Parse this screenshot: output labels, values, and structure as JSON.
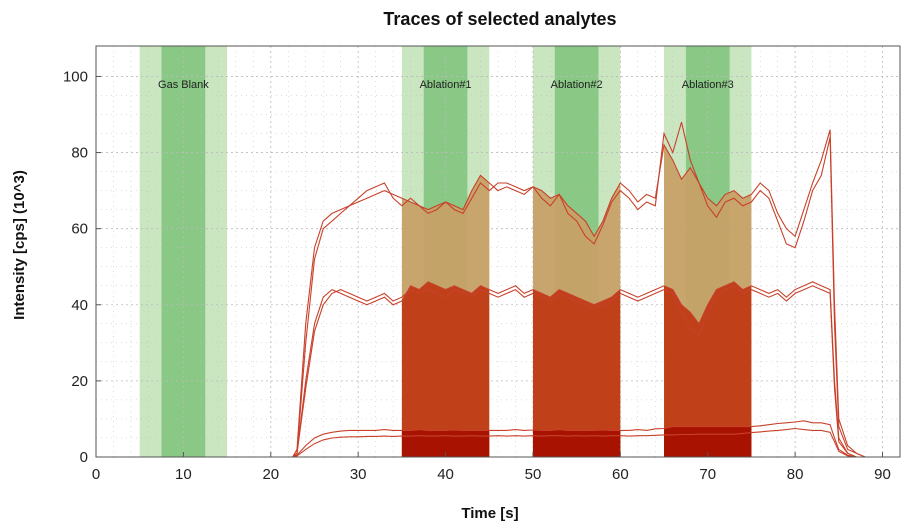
{
  "chart_data": {
    "type": "area",
    "title": "Traces of selected analytes",
    "xlabel": "Time [s]",
    "ylabel": "Intensity [cps] (10^3)",
    "xlim": [
      0,
      92
    ],
    "ylim": [
      0,
      108
    ],
    "xticks": [
      0,
      10,
      20,
      30,
      40,
      50,
      60,
      70,
      80,
      90
    ],
    "yticks": [
      0,
      20,
      40,
      60,
      80,
      100
    ],
    "grid": true,
    "regions": [
      {
        "label": "Gas Blank",
        "start": 5,
        "end": 15,
        "inner_start": 7.5,
        "inner_end": 12.5
      },
      {
        "label": "Ablation#1",
        "start": 35,
        "end": 45,
        "inner_start": 37.5,
        "inner_end": 42.5
      },
      {
        "label": "Ablation#2",
        "start": 50,
        "end": 60,
        "inner_start": 52.5,
        "inner_end": 57.5
      },
      {
        "label": "Ablation#3",
        "start": 65,
        "end": 75,
        "inner_start": 67.5,
        "inner_end": 72.5
      }
    ],
    "series": [
      {
        "x": [
          0,
          22.5,
          23,
          24,
          25,
          26,
          27,
          28,
          29,
          30,
          31,
          32,
          33,
          34,
          35,
          36,
          37,
          38,
          39,
          40,
          41,
          42,
          43,
          44,
          45,
          46,
          47,
          48,
          49,
          50,
          51,
          52,
          53,
          54,
          55,
          56,
          57,
          58,
          59,
          60,
          61,
          62,
          63,
          64,
          65,
          66,
          67,
          68,
          69,
          70,
          71,
          72,
          73,
          74,
          75,
          76,
          77,
          78,
          79,
          80,
          81,
          82,
          83,
          84,
          84.5,
          85,
          86,
          87,
          88,
          90
        ],
        "y": [
          0,
          0,
          2,
          35,
          55,
          62,
          64,
          65,
          66,
          67,
          68,
          69,
          70,
          69,
          68,
          67,
          66,
          65,
          66,
          67,
          66,
          65,
          70,
          74,
          72,
          70,
          71,
          70,
          69,
          71,
          70,
          68,
          69,
          66,
          64,
          62,
          58,
          62,
          68,
          72,
          70,
          67,
          69,
          68,
          82,
          78,
          73,
          76,
          72,
          68,
          66,
          69,
          70,
          68,
          69,
          72,
          70,
          64,
          60,
          58,
          65,
          72,
          78,
          86,
          40,
          10,
          3,
          1,
          0,
          0
        ]
      },
      {
        "x": [
          0,
          22.5,
          23,
          24,
          25,
          26,
          27,
          28,
          29,
          30,
          31,
          32,
          33,
          34,
          35,
          36,
          37,
          38,
          39,
          40,
          41,
          42,
          43,
          44,
          45,
          46,
          47,
          48,
          49,
          50,
          51,
          52,
          53,
          54,
          55,
          56,
          57,
          58,
          59,
          60,
          61,
          62,
          63,
          64,
          65,
          66,
          67,
          68,
          69,
          70,
          71,
          72,
          73,
          74,
          75,
          76,
          77,
          78,
          79,
          80,
          81,
          82,
          83,
          84,
          84.5,
          85,
          86,
          87,
          88,
          90
        ],
        "y": [
          0,
          0,
          1,
          30,
          52,
          60,
          62,
          64,
          66,
          68,
          70,
          71,
          72,
          68,
          66,
          68,
          66,
          64,
          65,
          67,
          65,
          64,
          68,
          72,
          70,
          72,
          72,
          71,
          70,
          71,
          68,
          66,
          69,
          64,
          62,
          58,
          56,
          61,
          67,
          70,
          68,
          65,
          67,
          66,
          85,
          80,
          88,
          78,
          72,
          66,
          63,
          67,
          68,
          66,
          67,
          70,
          68,
          62,
          56,
          55,
          62,
          70,
          74,
          84,
          35,
          8,
          2,
          1,
          0,
          0
        ]
      },
      {
        "x": [
          0,
          22.5,
          23,
          24,
          25,
          26,
          27,
          28,
          29,
          30,
          31,
          32,
          33,
          34,
          35,
          36,
          37,
          38,
          39,
          40,
          41,
          42,
          43,
          44,
          45,
          46,
          47,
          48,
          49,
          50,
          51,
          52,
          53,
          54,
          55,
          56,
          57,
          58,
          59,
          60,
          61,
          62,
          63,
          64,
          65,
          66,
          67,
          68,
          69,
          70,
          71,
          72,
          73,
          74,
          75,
          76,
          77,
          78,
          79,
          80,
          81,
          82,
          83,
          84,
          84.5,
          85,
          86,
          87,
          88,
          90
        ],
        "y": [
          0,
          0,
          1,
          20,
          35,
          42,
          44,
          43,
          42,
          41,
          40,
          41,
          42,
          40,
          41,
          45,
          44,
          46,
          45,
          44,
          45,
          44,
          43,
          45,
          44,
          43,
          44,
          45,
          43,
          44,
          43,
          42,
          44,
          43,
          42,
          41,
          40,
          41,
          42,
          44,
          43,
          42,
          43,
          44,
          45,
          44,
          40,
          38,
          35,
          40,
          44,
          45,
          46,
          44,
          45,
          44,
          43,
          44,
          42,
          44,
          45,
          46,
          45,
          44,
          20,
          5,
          1,
          0,
          0,
          0
        ]
      },
      {
        "x": [
          0,
          22.5,
          23,
          24,
          25,
          26,
          27,
          28,
          29,
          30,
          31,
          32,
          33,
          34,
          35,
          36,
          37,
          38,
          39,
          40,
          41,
          42,
          43,
          44,
          45,
          46,
          47,
          48,
          49,
          50,
          51,
          52,
          53,
          54,
          55,
          56,
          57,
          58,
          59,
          60,
          61,
          62,
          63,
          64,
          65,
          66,
          67,
          68,
          69,
          70,
          71,
          72,
          73,
          74,
          75,
          76,
          77,
          78,
          79,
          80,
          81,
          82,
          83,
          84,
          84.5,
          85,
          86,
          87,
          88,
          90
        ],
        "y": [
          0,
          0,
          1,
          18,
          33,
          40,
          43,
          44,
          43,
          42,
          41,
          42,
          43,
          41,
          42,
          44,
          43,
          44,
          43,
          42,
          44,
          43,
          42,
          44,
          43,
          42,
          43,
          44,
          42,
          43,
          42,
          41,
          43,
          42,
          41,
          40,
          39,
          40,
          41,
          43,
          42,
          41,
          42,
          43,
          44,
          43,
          38,
          34,
          32,
          38,
          42,
          44,
          45,
          43,
          44,
          43,
          42,
          43,
          41,
          43,
          44,
          45,
          44,
          43,
          18,
          4,
          1,
          0,
          0,
          0
        ]
      },
      {
        "x": [
          0,
          22.5,
          23,
          24,
          25,
          26,
          27,
          28,
          29,
          30,
          31,
          32,
          33,
          34,
          35,
          36,
          37,
          38,
          39,
          40,
          41,
          42,
          43,
          44,
          45,
          46,
          47,
          48,
          49,
          50,
          51,
          52,
          53,
          54,
          55,
          56,
          57,
          58,
          59,
          60,
          61,
          62,
          63,
          64,
          65,
          66,
          67,
          68,
          69,
          70,
          71,
          72,
          73,
          74,
          75,
          76,
          77,
          78,
          79,
          80,
          81,
          82,
          83,
          84,
          84.5,
          85,
          86,
          87,
          88,
          90
        ],
        "y": [
          0,
          0,
          0.5,
          3,
          5,
          6,
          6.5,
          6.8,
          7,
          7,
          7,
          7,
          7.2,
          7,
          7,
          7,
          7.2,
          7,
          7,
          7,
          7.1,
          7,
          7,
          7,
          7,
          7,
          7,
          7.2,
          7,
          7.1,
          7,
          7,
          7.2,
          7,
          7,
          7,
          7,
          7.1,
          7,
          7,
          7,
          7.2,
          7,
          7.4,
          7.5,
          8,
          8,
          8,
          8,
          8,
          8,
          8,
          8,
          8,
          8,
          8.2,
          8.5,
          8.8,
          9,
          9.2,
          9.5,
          9,
          9,
          8.5,
          5,
          2,
          0.5,
          0,
          0,
          0
        ]
      },
      {
        "x": [
          0,
          22.5,
          23,
          24,
          25,
          26,
          27,
          28,
          29,
          30,
          31,
          32,
          33,
          34,
          35,
          36,
          37,
          38,
          39,
          40,
          41,
          42,
          43,
          44,
          45,
          46,
          47,
          48,
          49,
          50,
          51,
          52,
          53,
          54,
          55,
          56,
          57,
          58,
          59,
          60,
          61,
          62,
          63,
          64,
          65,
          66,
          67,
          68,
          69,
          70,
          71,
          72,
          73,
          74,
          75,
          76,
          77,
          78,
          79,
          80,
          81,
          82,
          83,
          84,
          84.5,
          85,
          86,
          87,
          88,
          90
        ],
        "y": [
          0,
          0,
          0.3,
          2,
          3.5,
          4.5,
          5,
          5.2,
          5.3,
          5.3,
          5.4,
          5.4,
          5.5,
          5.4,
          5.5,
          5.5,
          5.6,
          5.5,
          5.5,
          5.6,
          5.5,
          5.5,
          5.6,
          5.5,
          5.5,
          5.6,
          5.5,
          5.6,
          5.5,
          5.6,
          5.5,
          5.6,
          5.6,
          5.5,
          5.6,
          5.5,
          5.6,
          5.5,
          5.6,
          5.6,
          5.5,
          5.6,
          5.6,
          5.7,
          5.8,
          5.8,
          5.9,
          5.9,
          6,
          6,
          6,
          6,
          6,
          6.2,
          6.4,
          6.6,
          6.8,
          7,
          7.2,
          7.5,
          7.2,
          7,
          7,
          6.5,
          4,
          1.5,
          0.3,
          0,
          0,
          0
        ]
      }
    ],
    "colors": {
      "line": "#c8412a",
      "band_outer": "#c9e6c0",
      "band_inner": "#7ec27a",
      "fill_dark": "#a81200",
      "fill_mid": "#c0401a",
      "fill_light": "#c9a067",
      "grid": "#bbbbbb"
    }
  }
}
